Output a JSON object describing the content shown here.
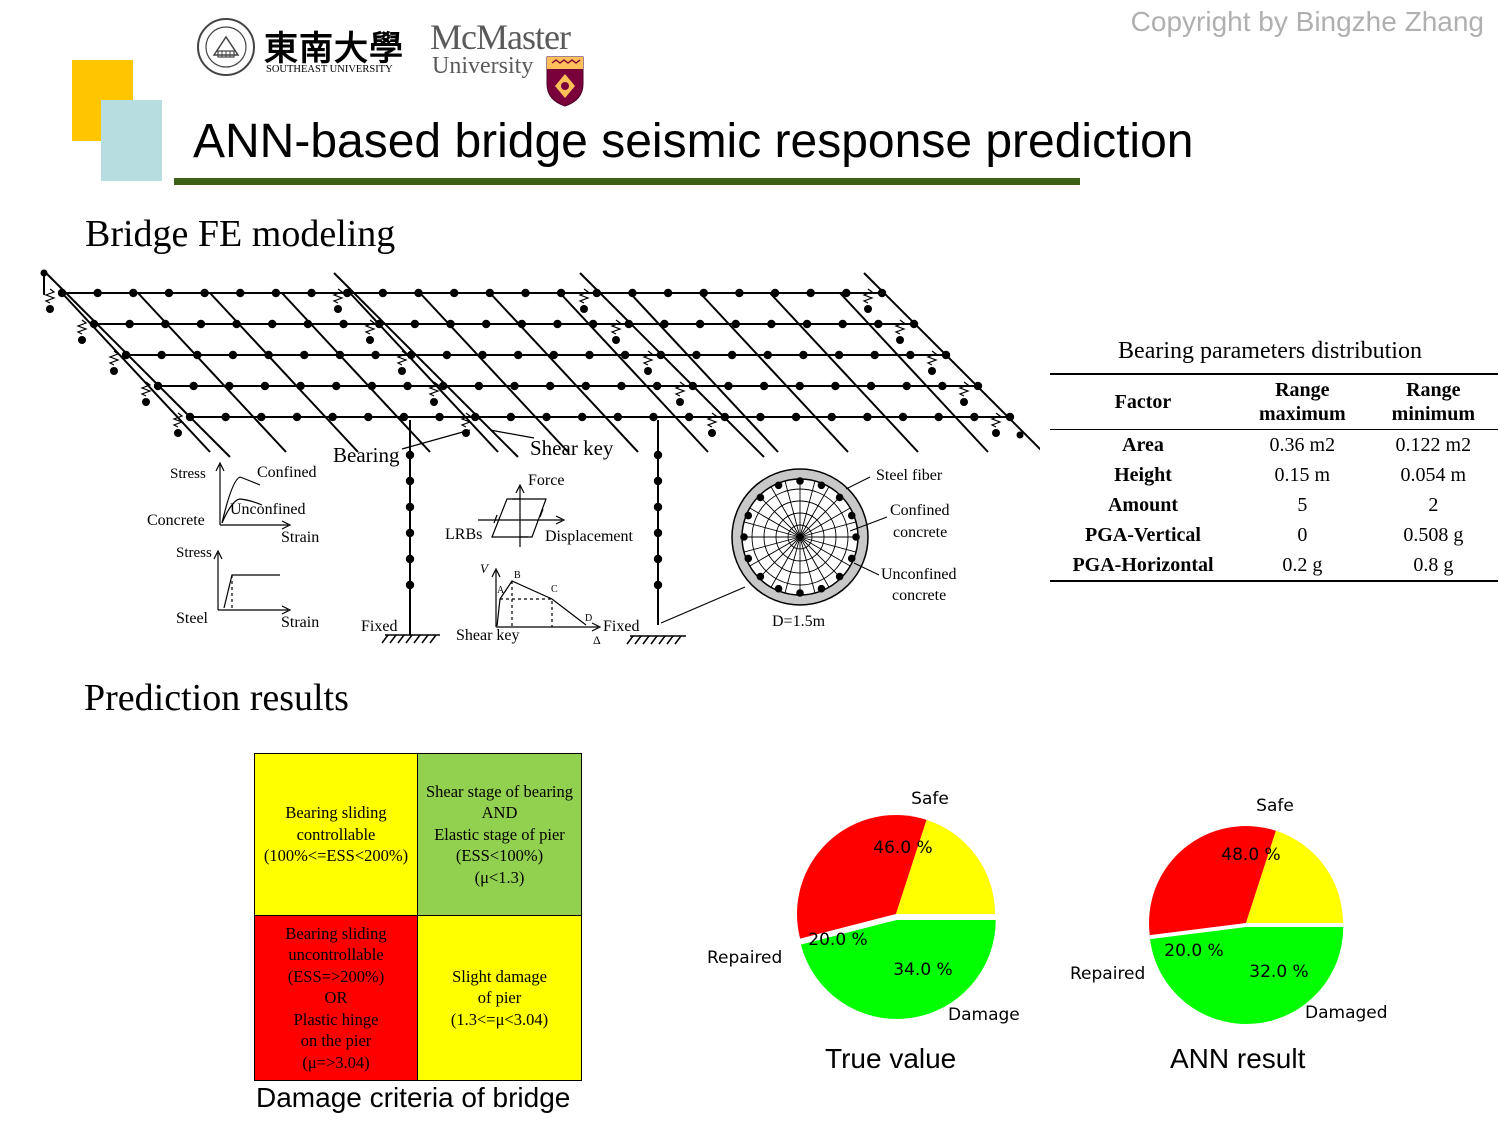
{
  "header": {
    "copyright": "Copyright by Bingzhe Zhang",
    "title": "ANN-based bridge seismic response prediction"
  },
  "logos": {
    "southeast": {
      "chinese": "東南大學",
      "english": "SOUTHEAST UNIVERSITY"
    },
    "mcmaster": {
      "name": "McMaster",
      "subtitle": "University"
    }
  },
  "sections": {
    "fe_modeling": "Bridge FE modeling",
    "prediction": "Prediction results"
  },
  "fe_model": {
    "labels": {
      "bearing": "Bearing",
      "shear_key": "Shear key",
      "fixed_left": "Fixed",
      "fixed_right": "Fixed",
      "shear_key_law": "Shear key",
      "stress_1": "Stress",
      "confined": "Confined",
      "unconfined": "Unconfined",
      "concrete": "Concrete",
      "strain_1": "Strain",
      "stress_2": "Stress",
      "steel": "Steel",
      "strain_2": "Strain",
      "force": "Force",
      "lrbs": "LRBs",
      "displacement": "Displacement",
      "v": "V",
      "a": "A",
      "b": "B",
      "c": "C",
      "d": "D",
      "delta": "Δ",
      "steel_fiber": "Steel fiber",
      "confined_concrete_1": "Confined",
      "confined_concrete_2": "concrete",
      "unconfined_concrete_1": "Unconfined",
      "unconfined_concrete_2": "concrete",
      "diameter": "D=1.5m"
    }
  },
  "bearing_table": {
    "caption": "Bearing parameters distribution",
    "headers": [
      "Factor",
      "Range maximum",
      "Range minimum"
    ],
    "rows": [
      [
        "Area",
        "0.36 m2",
        "0.122 m2"
      ],
      [
        "Height",
        "0.15 m",
        "0.054 m"
      ],
      [
        "Amount",
        "5",
        "2"
      ],
      [
        "PGA-Vertical",
        "0",
        "0.508 g"
      ],
      [
        "PGA-Horizontal",
        "0.2 g",
        "0.8 g"
      ]
    ]
  },
  "damage_criteria": {
    "caption": "Damage criteria of bridge",
    "cells": {
      "top_left": {
        "text": "Bearing sliding\ncontrollable\n(100%<=ESS<200%)",
        "color": "#ffff00"
      },
      "top_right": {
        "text": "Shear stage of bearing\nAND\nElastic stage of pier\n(ESS<100%)\n(μ<1.3)",
        "color": "#92d050"
      },
      "bottom_left": {
        "text": "Bearing sliding\nuncontrollable\n(ESS=>200%)\nOR\nPlastic hinge\non the pier\n(μ=>3.04)",
        "color": "#ff0000"
      },
      "bottom_right": {
        "text": "Slight damage\nof pier\n(1.3<=μ<3.04)",
        "color": "#ffff00"
      }
    }
  },
  "pies": [
    {
      "caption": "True value",
      "slices": [
        {
          "label": "Safe",
          "pct_label": "46.0 %",
          "value": 46.0,
          "color": "#00ff00"
        },
        {
          "label": "Damage",
          "pct_label": "34.0 %",
          "value": 34.0,
          "color": "#ff0000"
        },
        {
          "label": "Repaired",
          "pct_label": "20.0 %",
          "value": 20.0,
          "color": "#ffff00"
        }
      ]
    },
    {
      "caption": "ANN result",
      "slices": [
        {
          "label": "Safe",
          "pct_label": "48.0 %",
          "value": 48.0,
          "color": "#00ff00"
        },
        {
          "label": "Damaged",
          "pct_label": "32.0 %",
          "value": 32.0,
          "color": "#ff0000"
        },
        {
          "label": "Repaired",
          "pct_label": "20.0 %",
          "value": 20.0,
          "color": "#ffff00"
        }
      ]
    }
  ]
}
